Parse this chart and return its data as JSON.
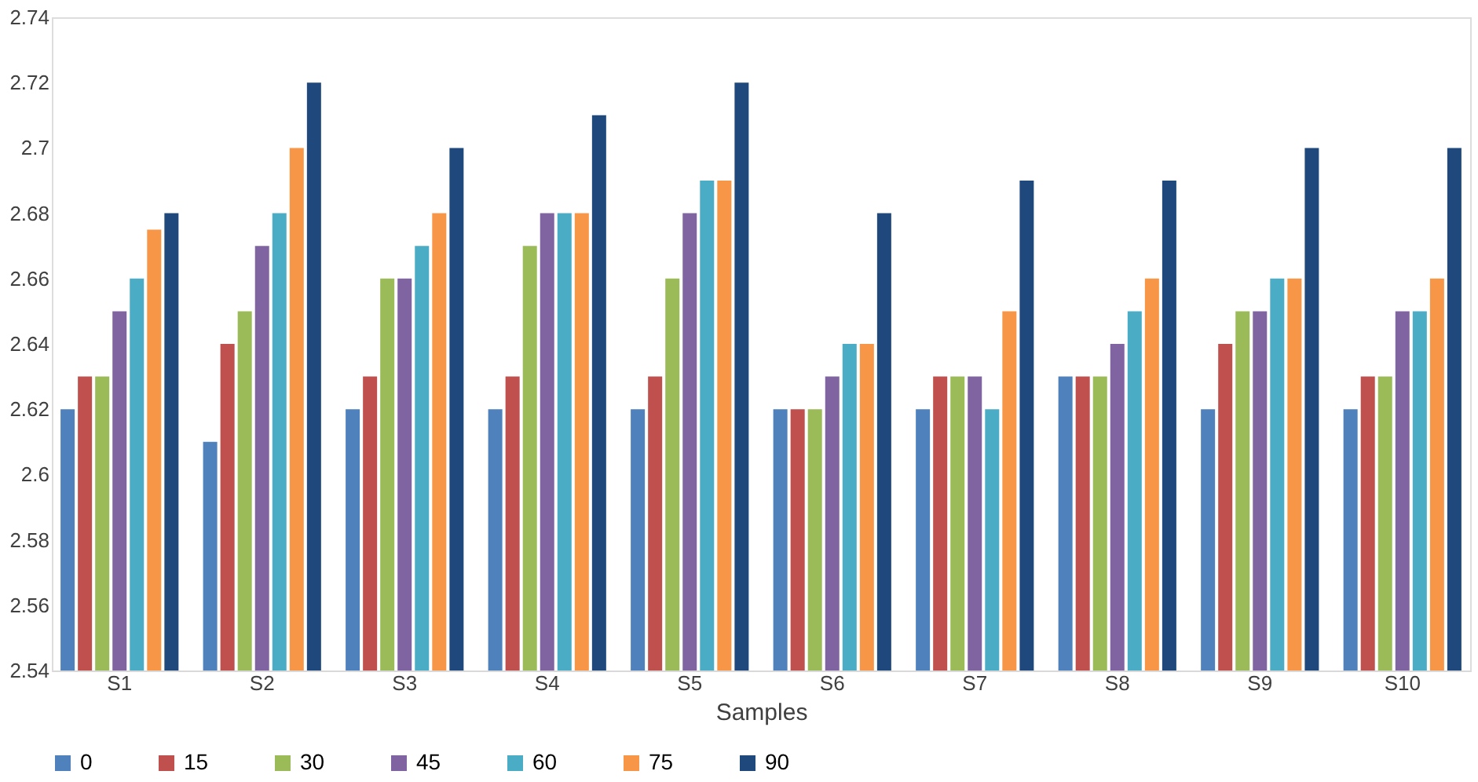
{
  "chart_data": {
    "type": "bar",
    "xlabel": "Samples",
    "categories": [
      "S1",
      "S2",
      "S3",
      "S4",
      "S5",
      "S6",
      "S7",
      "S8",
      "S9",
      "S10"
    ],
    "series": [
      {
        "name": "0",
        "color": "#4f81bd",
        "values": [
          2.62,
          2.61,
          2.62,
          2.62,
          2.62,
          2.62,
          2.62,
          2.63,
          2.62,
          2.62
        ]
      },
      {
        "name": "15",
        "color": "#c0504d",
        "values": [
          2.63,
          2.64,
          2.63,
          2.63,
          2.63,
          2.62,
          2.63,
          2.63,
          2.64,
          2.63
        ]
      },
      {
        "name": "30",
        "color": "#9bbb59",
        "values": [
          2.63,
          2.65,
          2.66,
          2.67,
          2.66,
          2.62,
          2.63,
          2.63,
          2.65,
          2.63
        ]
      },
      {
        "name": "45",
        "color": "#8064a2",
        "values": [
          2.65,
          2.67,
          2.66,
          2.68,
          2.68,
          2.63,
          2.63,
          2.64,
          2.65,
          2.65
        ]
      },
      {
        "name": "60",
        "color": "#4bacc6",
        "values": [
          2.66,
          2.68,
          2.67,
          2.68,
          2.69,
          2.64,
          2.62,
          2.65,
          2.66,
          2.65
        ]
      },
      {
        "name": "75",
        "color": "#f79646",
        "values": [
          2.675,
          2.7,
          2.68,
          2.68,
          2.69,
          2.64,
          2.65,
          2.66,
          2.66,
          2.66
        ]
      },
      {
        "name": "90",
        "color": "#1f497d",
        "values": [
          2.68,
          2.72,
          2.7,
          2.71,
          2.72,
          2.68,
          2.69,
          2.69,
          2.7,
          2.7
        ]
      }
    ],
    "ylim": [
      2.54,
      2.74
    ],
    "yticks": [
      2.54,
      2.56,
      2.58,
      2.6,
      2.62,
      2.64,
      2.66,
      2.68,
      2.7,
      2.72,
      2.74
    ],
    "grid": false,
    "legend": "bottom"
  }
}
